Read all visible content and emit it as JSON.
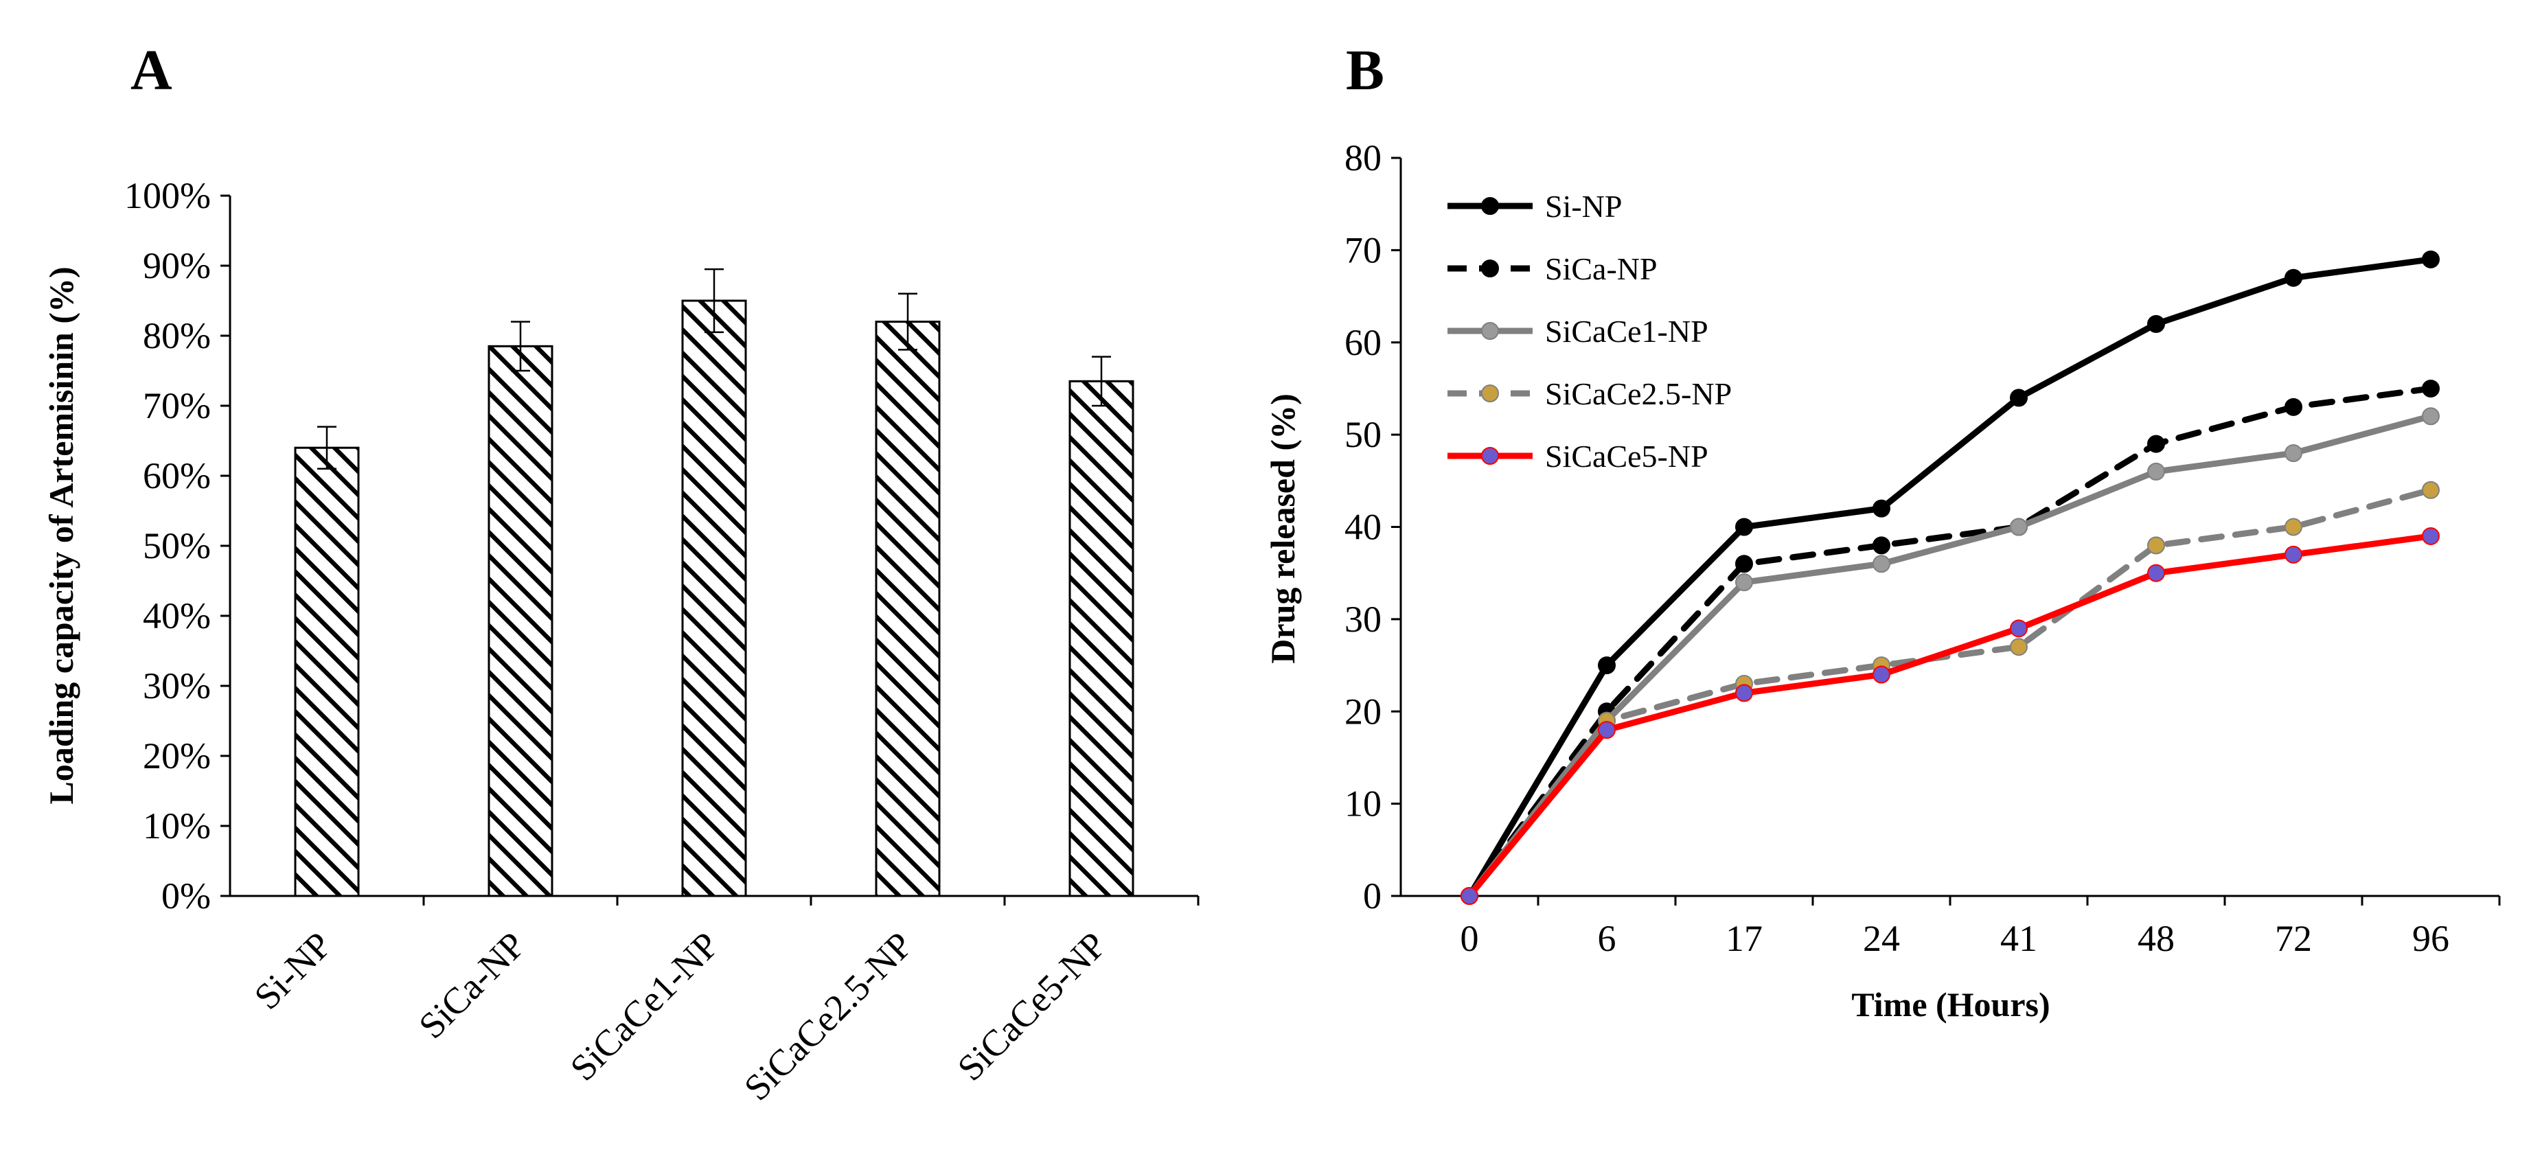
{
  "chart_data": [
    {
      "panel_label": "A",
      "type": "bar",
      "title": "",
      "xlabel": "",
      "ylabel": "Loading capacity of Artemisinin (%)",
      "ylim": [
        0,
        100
      ],
      "y_ticks": [
        0,
        10,
        20,
        30,
        40,
        50,
        60,
        70,
        80,
        90,
        100
      ],
      "y_tick_labels": [
        "0%",
        "10%",
        "20%",
        "30%",
        "40%",
        "50%",
        "60%",
        "70%",
        "80%",
        "90%",
        "100%"
      ],
      "categories": [
        "Si-NP",
        "SiCa-NP",
        "SiCaCe1-NP",
        "SiCaCe2.5-NP",
        "SiCaCe5-NP"
      ],
      "values": [
        64,
        78.5,
        85,
        82,
        73.5
      ],
      "errors": [
        3,
        3.5,
        4.5,
        4,
        3.5
      ],
      "grid": false,
      "fill_pattern": "diagonal-hatch",
      "colors": {
        "bar_fill": "#ffffff",
        "hatch": "#000000",
        "axis": "#000000"
      }
    },
    {
      "panel_label": "B",
      "type": "line",
      "title": "",
      "xlabel": "Time (Hours)",
      "ylabel": "Drug released (%)",
      "ylim": [
        0,
        80
      ],
      "y_ticks": [
        0,
        10,
        20,
        30,
        40,
        50,
        60,
        70,
        80
      ],
      "categories": [
        "0",
        "6",
        "17",
        "24",
        "41",
        "48",
        "72",
        "96"
      ],
      "grid": false,
      "legend_position": "top-left",
      "series": [
        {
          "name": "Si-NP",
          "values": [
            0,
            25,
            40,
            42,
            54,
            62,
            67,
            69
          ],
          "color": "#000000",
          "marker": "#000000",
          "dash": "solid"
        },
        {
          "name": "SiCa-NP",
          "values": [
            0,
            20,
            36,
            38,
            40,
            49,
            53,
            55
          ],
          "color": "#000000",
          "marker": "#000000",
          "dash": "dashed"
        },
        {
          "name": "SiCaCe1-NP",
          "values": [
            0,
            19,
            34,
            36,
            40,
            46,
            48,
            52
          ],
          "color": "#808080",
          "marker": "#9a9a9a",
          "dash": "solid"
        },
        {
          "name": "SiCaCe2.5-NP",
          "values": [
            0,
            19,
            23,
            25,
            27,
            38,
            40,
            44
          ],
          "color": "#808080",
          "marker": "#c8a040",
          "dash": "dashed"
        },
        {
          "name": "SiCaCe5-NP",
          "values": [
            0,
            18,
            22,
            24,
            29,
            35,
            37,
            39
          ],
          "color": "#ff0000",
          "marker": "#6a5acd",
          "dash": "solid"
        }
      ]
    }
  ]
}
